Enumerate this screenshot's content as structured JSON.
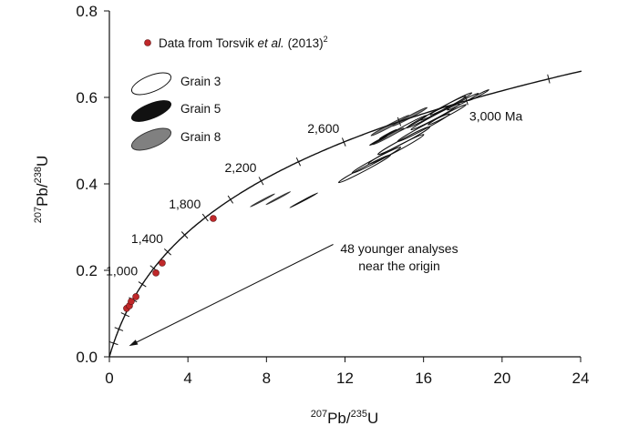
{
  "chart_data": {
    "type": "scatter",
    "subtype": "concordia",
    "xlabel": {
      "sup": "207",
      "main": "Pb/",
      "sup2": "235",
      "end": "U"
    },
    "ylabel": {
      "sup": "207",
      "main": "Pb/",
      "sup2": "238",
      "end": "U"
    },
    "xlim": [
      0,
      24
    ],
    "ylim": [
      0,
      0.8
    ],
    "xticks": [
      0,
      4,
      8,
      12,
      16,
      20,
      24
    ],
    "xtick_labels": [
      "0",
      "4",
      "8",
      "12",
      "16",
      "20",
      "24"
    ],
    "yticks": [
      0,
      0.2,
      0.4,
      0.6,
      0.8
    ],
    "ytick_labels": [
      "0.0",
      "0.2",
      "0.4",
      "0.6",
      "0.8"
    ],
    "concordia": {
      "tick_step_ma": 200,
      "max_ma": 3270
    },
    "age_labels": [
      {
        "age": 1000,
        "text": "1,000"
      },
      {
        "age": 1400,
        "text": "1,400"
      },
      {
        "age": 1800,
        "text": "1,800"
      },
      {
        "age": 2200,
        "text": "2,200"
      },
      {
        "age": 2600,
        "text": "2,600"
      },
      {
        "age": 3000,
        "text": "3,000 Ma"
      }
    ],
    "legend": {
      "placement": "top-left",
      "entries": [
        {
          "label_pre": "Data from Torsvik ",
          "label_em": "et al.",
          "label_post": " (2013)",
          "sup": "2",
          "kind": "point",
          "color": "#c0282a"
        },
        {
          "label": "Grain 3",
          "kind": "ellipse",
          "color": "#ffffff"
        },
        {
          "label": "Grain 5",
          "kind": "ellipse",
          "color": "#111111"
        },
        {
          "label": "Grain 8",
          "kind": "ellipse",
          "color": "#808080"
        }
      ]
    },
    "torsvik_points": [
      {
        "x": 0.88,
        "y": 0.112
      },
      {
        "x": 1.02,
        "y": 0.118
      },
      {
        "x": 1.11,
        "y": 0.128
      },
      {
        "x": 1.35,
        "y": 0.139
      },
      {
        "x": 2.37,
        "y": 0.194
      },
      {
        "x": 2.69,
        "y": 0.217
      },
      {
        "x": 5.29,
        "y": 0.32
      }
    ],
    "ellipses": [
      {
        "grain": "Grain 8",
        "x": 7.8,
        "y": 0.362,
        "a": 0.7,
        "b": 0.07
      },
      {
        "grain": "Grain 8",
        "x": 8.6,
        "y": 0.367,
        "a": 0.7,
        "b": 0.07
      },
      {
        "grain": "Grain 5",
        "x": 9.9,
        "y": 0.362,
        "a": 0.8,
        "b": 0.06
      },
      {
        "grain": "Grain 3",
        "x": 13.0,
        "y": 0.435,
        "a": 1.5,
        "b": 0.28
      },
      {
        "grain": "Grain 3",
        "x": 13.6,
        "y": 0.455,
        "a": 1.4,
        "b": 0.28
      },
      {
        "grain": "Grain 3",
        "x": 14.6,
        "y": 0.48,
        "a": 1.6,
        "b": 0.32
      },
      {
        "grain": "Grain 3",
        "x": 15.0,
        "y": 0.5,
        "a": 1.5,
        "b": 0.3
      },
      {
        "grain": "Grain 3",
        "x": 16.0,
        "y": 0.53,
        "a": 1.5,
        "b": 0.28
      },
      {
        "grain": "Grain 3",
        "x": 16.6,
        "y": 0.555,
        "a": 1.4,
        "b": 0.26
      },
      {
        "grain": "Grain 3",
        "x": 17.0,
        "y": 0.575,
        "a": 1.3,
        "b": 0.24
      },
      {
        "grain": "Grain 3",
        "x": 17.4,
        "y": 0.585,
        "a": 1.2,
        "b": 0.22
      },
      {
        "grain": "Grain 3",
        "x": 17.2,
        "y": 0.56,
        "a": 1.1,
        "b": 0.2
      },
      {
        "grain": "Grain 3",
        "x": 16.2,
        "y": 0.555,
        "a": 1.2,
        "b": 0.22
      },
      {
        "grain": "Grain 3",
        "x": 18.0,
        "y": 0.59,
        "a": 0.9,
        "b": 0.18
      },
      {
        "grain": "Grain 3",
        "x": 18.8,
        "y": 0.605,
        "a": 0.6,
        "b": 0.12
      },
      {
        "grain": "Grain 3",
        "x": 15.2,
        "y": 0.535,
        "a": 1.1,
        "b": 0.2
      },
      {
        "grain": "Grain 8",
        "x": 14.3,
        "y": 0.535,
        "a": 1.1,
        "b": 0.2
      },
      {
        "grain": "Grain 8",
        "x": 15.3,
        "y": 0.555,
        "a": 1.0,
        "b": 0.18
      },
      {
        "grain": "Grain 8",
        "x": 14.2,
        "y": 0.51,
        "a": 0.9,
        "b": 0.16
      },
      {
        "grain": "Grain 5",
        "x": 13.7,
        "y": 0.5,
        "a": 0.5,
        "b": 0.08
      },
      {
        "grain": "Grain 5",
        "x": 14.2,
        "y": 0.515,
        "a": 0.5,
        "b": 0.08
      }
    ],
    "annotation": {
      "line1": "48 younger analyses",
      "line2": "near the origin",
      "arrow_to": {
        "x": 1.0,
        "y": 0.025
      },
      "arrow_from": {
        "x": 11.4,
        "y": 0.26
      }
    }
  }
}
